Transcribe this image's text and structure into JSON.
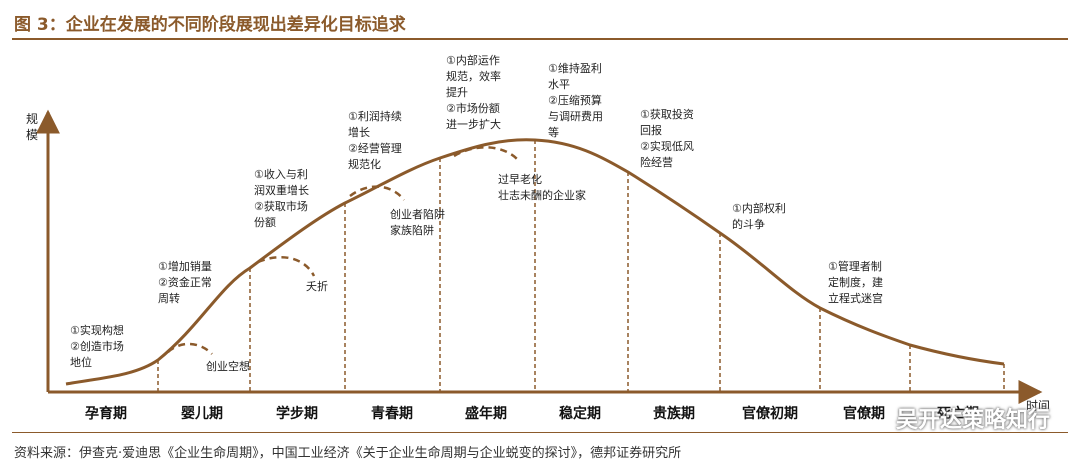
{
  "title": "图 3：企业在发展的不同阶段展现出差异化目标追求",
  "axis": {
    "y_label": [
      "规",
      "模"
    ],
    "x_label": "时间"
  },
  "stages": [
    "孕育期",
    "婴儿期",
    "学步期",
    "青春期",
    "盛年期",
    "稳定期",
    "贵族期",
    "官僚初期",
    "官僚期",
    "死亡期"
  ],
  "notes": [
    {
      "id": "yunyu",
      "lines": [
        "①实现构想",
        "②创造市场",
        "地位"
      ]
    },
    {
      "id": "yinger",
      "lines": [
        "①增加销量",
        "②资金正常",
        "周转"
      ]
    },
    {
      "id": "xuebu",
      "lines": [
        "①收入与利",
        "润双重增长",
        "②获取市场",
        "份额"
      ]
    },
    {
      "id": "qingchun",
      "lines": [
        "①利润持续",
        "增长",
        "②经营管理",
        "规范化"
      ]
    },
    {
      "id": "shengnian",
      "lines": [
        "①内部运作",
        "规范，效率",
        "提升",
        "②市场份额",
        "进一步扩大"
      ]
    },
    {
      "id": "wending",
      "lines": [
        "①维持盈利",
        "水平",
        "②压缩预算",
        "与调研费用",
        "等"
      ]
    },
    {
      "id": "guizu",
      "lines": [
        "①获取投资",
        "回报",
        "②实现低风",
        "险经营"
      ]
    },
    {
      "id": "guanliaochu",
      "lines": [
        "①内部权利",
        "的斗争"
      ]
    },
    {
      "id": "guanliao",
      "lines": [
        "①管理者制",
        "定制度，建",
        "立程式迷宫"
      ]
    }
  ],
  "traps": [
    {
      "id": "chuangye-kong",
      "text": "创业空想"
    },
    {
      "id": "yaozhe",
      "text": "夭折"
    },
    {
      "id": "chuangye-xianjing",
      "lines": [
        "创业者陷阱",
        "家族陷阱"
      ]
    },
    {
      "id": "guozao",
      "lines": [
        "过早老化",
        "壮志未酬的企业家"
      ]
    }
  ],
  "source": "资料来源：伊查克·爱迪思《企业生命周期》，中国工业经济《关于企业生命周期与企业蜕变的探讨》，德邦证券研究所",
  "watermark": "吴开达策略知行",
  "colors": {
    "accent": "#8B5A2B",
    "curve": "#8B5A2B"
  }
}
